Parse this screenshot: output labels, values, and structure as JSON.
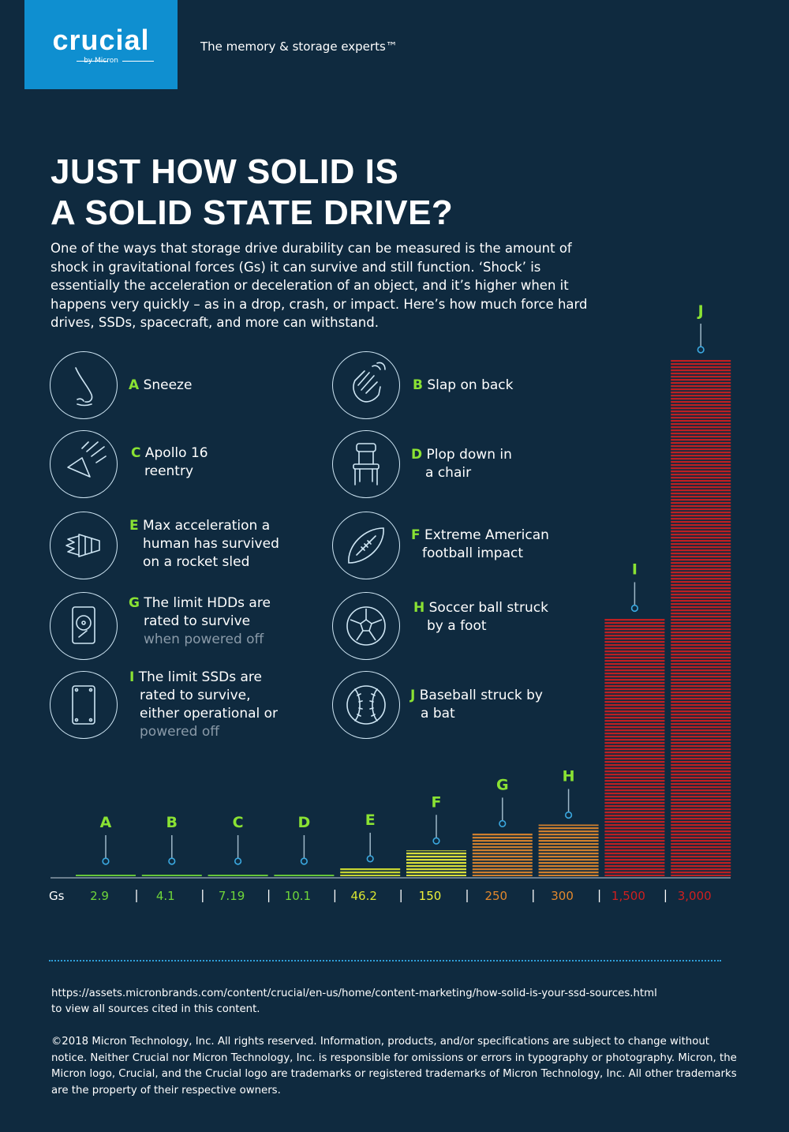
{
  "header": {
    "brand": "crucial",
    "brand_sub": "by Micron",
    "tagline": "The memory & storage experts™"
  },
  "title_line1": "JUST HOW SOLID IS",
  "title_line2": "A SOLID STATE DRIVE?",
  "intro": "One of the ways that storage drive durability can be measured is the amount of shock in gravitational forces (Gs) it can survive and still function. ‘Shock’ is essentially the acceleration or deceleration of an object, and it’s higher when it happens very quickly – as in a drop, crash, or impact. Here’s how much force hard drives, SSDs, spacecraft, and more can withstand.",
  "legend": [
    {
      "letter": "A",
      "lines": [
        "Sneeze"
      ],
      "dim": [],
      "icon": "nose-icon"
    },
    {
      "letter": "B",
      "lines": [
        "Slap on back"
      ],
      "dim": [],
      "icon": "slapping-hand-icon"
    },
    {
      "letter": "C",
      "lines": [
        "Apollo 16",
        "reentry"
      ],
      "dim": [],
      "icon": "space-capsule-icon"
    },
    {
      "letter": "D",
      "lines": [
        "Plop down in",
        "a chair"
      ],
      "dim": [],
      "icon": "chair-icon"
    },
    {
      "letter": "E",
      "lines": [
        "Max acceleration a",
        "human has survived",
        "on a rocket sled"
      ],
      "dim": [],
      "icon": "rocket-sled-icon"
    },
    {
      "letter": "F",
      "lines": [
        "Extreme American",
        "football impact"
      ],
      "dim": [],
      "icon": "football-icon"
    },
    {
      "letter": "G",
      "lines": [
        "The limit HDDs are",
        "rated to survive"
      ],
      "dim": [
        "when powered off"
      ],
      "icon": "hard-drive-icon"
    },
    {
      "letter": "H",
      "lines": [
        "Soccer ball struck",
        "by a foot"
      ],
      "dim": [],
      "icon": "soccer-ball-icon"
    },
    {
      "letter": "I",
      "lines": [
        "The limit SSDs are",
        "rated to survive,",
        "either operational or"
      ],
      "dim": [
        "powered off"
      ],
      "icon": "ssd-icon"
    },
    {
      "letter": "J",
      "lines": [
        "Baseball struck by",
        "a bat"
      ],
      "dim": [],
      "icon": "baseball-icon"
    }
  ],
  "chart_data": {
    "type": "bar",
    "title": "JUST HOW SOLID IS A SOLID STATE DRIVE?",
    "xlabel": "",
    "ylabel": "Gs",
    "axis_label": "Gs",
    "ylim": [
      0,
      3000
    ],
    "categories": [
      "A",
      "B",
      "C",
      "D",
      "E",
      "F",
      "G",
      "H",
      "I",
      "J"
    ],
    "values": [
      2.9,
      4.1,
      7.19,
      10.1,
      46.2,
      150,
      250,
      300,
      1500,
      3000
    ],
    "value_labels": [
      "2.9",
      "4.1",
      "7.19",
      "10.1",
      "46.2",
      "150",
      "250",
      "300",
      "1,500",
      "3,000"
    ],
    "colors": [
      "#6fd63a",
      "#6fd63a",
      "#6fd63a",
      "#6fd63a",
      "#d9e531",
      "#eef13a",
      "#e3882c",
      "#e3882c",
      "#cf1f1f",
      "#cf1f1f"
    ]
  },
  "footer": {
    "sources_url": "https://assets.micronbrands.com/content/crucial/en-us/home/content-marketing/how-solid-is-your-ssd-sources.html",
    "sources_text": "to view all sources cited in this content.",
    "copyright": "©2018 Micron Technology, Inc. All rights reserved. Information, products, and/or specifications are subject to change without notice. Neither Crucial nor Micron Technology, Inc. is responsible for omissions or errors in typography or photography. Micron, the Micron logo, Crucial, and the Crucial logo are trademarks or registered trademarks of Micron Technology, Inc. All other trademarks are the property of their respective owners."
  }
}
